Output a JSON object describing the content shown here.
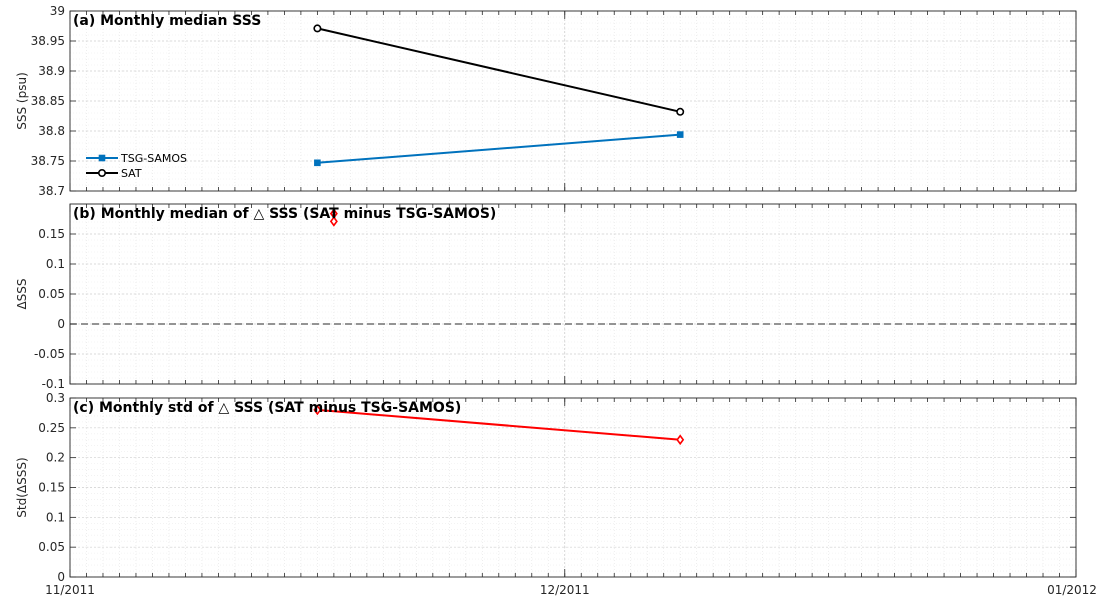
{
  "chart_data": [
    {
      "type": "line",
      "title": "(a) Monthly median SSS",
      "ylabel": "SSS (psu)",
      "xlabel": "",
      "ylim": [
        38.7,
        39.0
      ],
      "yticks": [
        "38.7",
        "38.75",
        "38.8",
        "38.85",
        "38.9",
        "38.95",
        "39"
      ],
      "grid": true,
      "legend_position": "left",
      "series": [
        {
          "name": "TSG-SAMOS",
          "color": "#0072BD",
          "marker": "square",
          "x": [
            "2011-11-16",
            "2011-12-08"
          ],
          "values": [
            38.747,
            38.794
          ]
        },
        {
          "name": "SAT",
          "color": "#000000",
          "marker": "circle",
          "x": [
            "2011-11-16",
            "2011-12-08"
          ],
          "values": [
            38.971,
            38.832
          ]
        }
      ]
    },
    {
      "type": "scatter",
      "title": "(b) Monthly median of △ SSS (SAT minus TSG-SAMOS)",
      "ylabel": "ΔSSS",
      "xlabel": "",
      "ylim": [
        -0.1,
        0.2
      ],
      "yticks": [
        "-0.1",
        "-0.05",
        "0",
        "0.05",
        "0.1",
        "0.15"
      ],
      "grid": true,
      "reference_line": 0,
      "series": [
        {
          "name": "",
          "color": "#FF0000",
          "marker": "diamond",
          "x": [
            "2011-11-17",
            "2011-11-17"
          ],
          "values": [
            0.171,
            0.184
          ]
        }
      ]
    },
    {
      "type": "line",
      "title": "(c) Monthly std of △ SSS (SAT minus TSG-SAMOS)",
      "ylabel": "Std(ΔSSS)",
      "xlabel": "",
      "ylim": [
        0,
        0.3
      ],
      "yticks": [
        "0",
        "0.05",
        "0.1",
        "0.15",
        "0.2",
        "0.25",
        "0.3"
      ],
      "grid": true,
      "series": [
        {
          "name": "",
          "color": "#FF0000",
          "marker": "diamond",
          "x": [
            "2011-11-16",
            "2011-12-08"
          ],
          "values": [
            0.28,
            0.23
          ]
        }
      ]
    }
  ],
  "x_axis": {
    "tick_labels": [
      "11/2011",
      "12/2011",
      "01/2012"
    ],
    "range": [
      "2011-11-01",
      "2012-01-01"
    ]
  }
}
